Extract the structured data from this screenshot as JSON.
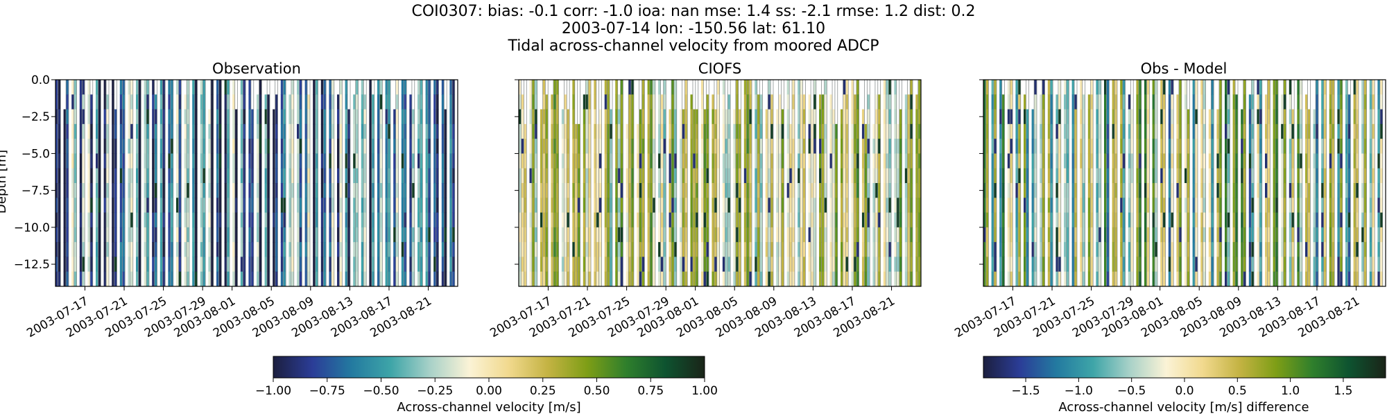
{
  "chart_data": {
    "type": "heatmap",
    "title_lines": [
      "COI0307: bias: -0.1  corr: -1.0  ioa: nan  mse: 1.4  ss: -2.1  rmse: 1.2  dist: 0.2",
      "2003-07-14 lon: -150.56 lat: 61.10",
      "Tidal across-channel velocity from moored ADCP"
    ],
    "ylabel": "Depth [m]",
    "ylim": [
      -14,
      0
    ],
    "yticks": [
      "0.0",
      "−2.5",
      "−5.0",
      "−7.5",
      "−10.0",
      "−12.5"
    ],
    "ytick_values": [
      0,
      -2.5,
      -5,
      -7.5,
      -10,
      -12.5
    ],
    "xlim": [
      "2003-07-14",
      "2003-08-24"
    ],
    "xticks": [
      "2003-07-17",
      "2003-07-21",
      "2003-07-25",
      "2003-07-29",
      "2003-08-01",
      "2003-08-05",
      "2003-08-09",
      "2003-08-13",
      "2003-08-17",
      "2003-08-21"
    ],
    "panels": [
      {
        "title": "Observation",
        "field": "observed velocity",
        "colorbar": "velocity"
      },
      {
        "title": "CIOFS",
        "field": "model velocity",
        "colorbar": "velocity"
      },
      {
        "title": "Obs - Model",
        "field": "difference",
        "colorbar": "difference"
      }
    ],
    "colorbars": {
      "velocity": {
        "label": "Across-channel velocity [m/s]",
        "range": [
          -1.0,
          1.0
        ],
        "ticks": [
          "−1.00",
          "−0.75",
          "−0.50",
          "−0.25",
          "0.00",
          "0.25",
          "0.50",
          "0.75",
          "1.00"
        ],
        "tick_values": [
          -1,
          -0.75,
          -0.5,
          -0.25,
          0,
          0.25,
          0.5,
          0.75,
          1
        ]
      },
      "difference": {
        "label": "Across-channel velocity [m/s] difference",
        "range": [
          -1.9,
          1.9
        ],
        "ticks": [
          "−1.5",
          "−1.0",
          "−0.5",
          "0.0",
          "0.5",
          "1.0",
          "1.5"
        ],
        "tick_values": [
          -1.5,
          -1,
          -0.5,
          0,
          0.5,
          1,
          1.5
        ]
      }
    },
    "colormap": [
      "#1c1f3f",
      "#2b3d97",
      "#237aa0",
      "#3ea5a8",
      "#a8d1c8",
      "#fbf3d6",
      "#f1d98e",
      "#c4b343",
      "#7e9e16",
      "#2f7f2c",
      "#0e5330",
      "#1a2418"
    ],
    "grid": false,
    "legend": "none"
  }
}
